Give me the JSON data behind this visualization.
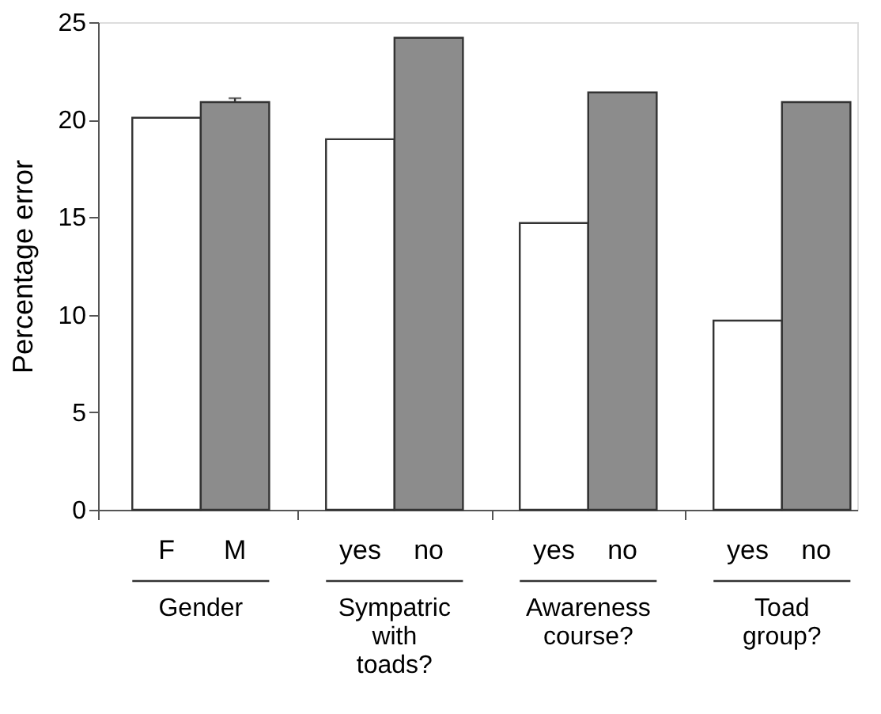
{
  "chart_data": {
    "type": "bar",
    "ylabel": "Percentage error",
    "categories": [
      "F",
      "M",
      "yes",
      "no",
      "yes",
      "no",
      "yes",
      "no"
    ],
    "values": [
      20.1,
      20.9,
      19.0,
      24.2,
      14.7,
      21.4,
      9.7,
      20.9
    ],
    "colors": [
      "#ffffff",
      "#8c8c8c",
      "#ffffff",
      "#8c8c8c",
      "#ffffff",
      "#8c8c8c",
      "#ffffff",
      "#8c8c8c"
    ],
    "errors": [
      null,
      0.2,
      null,
      null,
      null,
      null,
      null,
      null
    ],
    "annotations": [
      "Gender",
      "Sympatric\nwith\ntoads?",
      "Awareness\ncourse?",
      "Toad\ngroup?"
    ],
    "ylim": [
      0,
      25
    ],
    "yticks": [
      0,
      5,
      10,
      15,
      20,
      25
    ],
    "grid": false
  }
}
